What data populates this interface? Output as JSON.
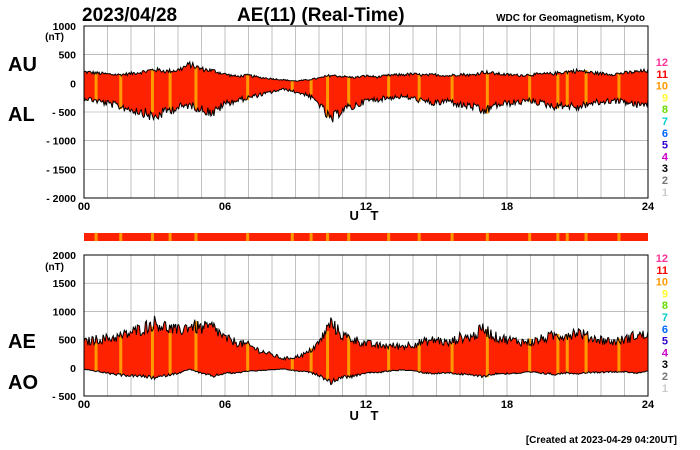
{
  "header": {
    "date": "2023/04/28",
    "title": "AE(11) (Real-Time)",
    "source": "WDC for Geomagnetism, Kyoto"
  },
  "footer": {
    "created": "[Created at 2023-04-29 04:20UT]"
  },
  "legend": {
    "labels": [
      "12",
      "11",
      "10",
      "9",
      "8",
      "7",
      "6",
      "5",
      "4",
      "3",
      "2",
      "1"
    ],
    "colors": [
      "#ff3399",
      "#ff0000",
      "#ff9900",
      "#ffff33",
      "#66dd00",
      "#00cccc",
      "#0066ff",
      "#3300cc",
      "#cc00cc",
      "#000000",
      "#777777",
      "#cccccc"
    ]
  },
  "colors": {
    "fill_main": "#ff2200",
    "fill_alt": "#ff9900",
    "line": "#000000",
    "grid": "#999999"
  },
  "chart_data": [
    {
      "type": "area",
      "panel": "AU/AL",
      "side_labels": [
        "AU",
        "AL"
      ],
      "unit": "(nT)",
      "xlabel": "U T",
      "xlim": [
        0,
        24
      ],
      "xticks": [
        0,
        6,
        12,
        18,
        24
      ],
      "xtick_labels": [
        "00",
        "06",
        "12",
        "18",
        "24"
      ],
      "ylim": [
        -2000,
        1000
      ],
      "yticks": [
        1000,
        500,
        0,
        -500,
        -1000,
        -1500,
        -2000
      ],
      "ytick_labels": [
        "1000",
        "500",
        "0",
        "- 500",
        "- 1000",
        "- 1500",
        "- 2000"
      ],
      "x": [
        0,
        0.5,
        1,
        1.5,
        2,
        2.5,
        3,
        3.5,
        4,
        4.5,
        5,
        5.5,
        6,
        6.5,
        7,
        7.5,
        8,
        8.5,
        9,
        9.5,
        10,
        10.5,
        11,
        11.5,
        12,
        12.5,
        13,
        13.5,
        14,
        14.5,
        15,
        15.5,
        16,
        16.5,
        17,
        17.5,
        18,
        18.5,
        19,
        19.5,
        20,
        20.5,
        21,
        21.5,
        22,
        22.5,
        23,
        23.5,
        24
      ],
      "series": [
        {
          "name": "AU",
          "values": [
            200,
            180,
            160,
            150,
            170,
            200,
            240,
            210,
            230,
            330,
            250,
            220,
            160,
            120,
            140,
            100,
            80,
            60,
            40,
            60,
            90,
            140,
            120,
            100,
            130,
            110,
            140,
            150,
            160,
            140,
            150,
            130,
            160,
            140,
            200,
            170,
            150,
            140,
            150,
            160,
            170,
            200,
            220,
            190,
            170,
            160,
            180,
            200,
            220
          ]
        },
        {
          "name": "AL",
          "values": [
            -250,
            -300,
            -350,
            -400,
            -450,
            -500,
            -600,
            -480,
            -420,
            -380,
            -450,
            -520,
            -350,
            -300,
            -250,
            -200,
            -150,
            -100,
            -150,
            -200,
            -350,
            -650,
            -450,
            -400,
            -300,
            -280,
            -250,
            -230,
            -260,
            -320,
            -350,
            -300,
            -380,
            -400,
            -500,
            -380,
            -350,
            -330,
            -300,
            -350,
            -400,
            -380,
            -420,
            -350,
            -330,
            -300,
            -320,
            -380,
            -350
          ]
        }
      ]
    },
    {
      "type": "area",
      "panel": "AE/AO",
      "side_labels": [
        "AE",
        "AO"
      ],
      "unit": "(nT)",
      "xlabel": "U T",
      "xlim": [
        0,
        24
      ],
      "xticks": [
        0,
        6,
        12,
        18,
        24
      ],
      "xtick_labels": [
        "00",
        "06",
        "12",
        "18",
        "24"
      ],
      "ylim": [
        -500,
        2000
      ],
      "yticks": [
        2000,
        1500,
        1000,
        500,
        0,
        -500
      ],
      "ytick_labels": [
        "2000",
        "1500",
        "1000",
        "500",
        "0",
        "- 500"
      ],
      "x": [
        0,
        0.5,
        1,
        1.5,
        2,
        2.5,
        3,
        3.5,
        4,
        4.5,
        5,
        5.5,
        6,
        6.5,
        7,
        7.5,
        8,
        8.5,
        9,
        9.5,
        10,
        10.5,
        11,
        11.5,
        12,
        12.5,
        13,
        13.5,
        14,
        14.5,
        15,
        15.5,
        16,
        16.5,
        17,
        17.5,
        18,
        18.5,
        19,
        19.5,
        20,
        20.5,
        21,
        21.5,
        22,
        22.5,
        23,
        23.5,
        24
      ],
      "series": [
        {
          "name": "AE",
          "values": [
            450,
            500,
            520,
            550,
            620,
            700,
            800,
            720,
            650,
            750,
            700,
            720,
            520,
            450,
            400,
            300,
            230,
            160,
            190,
            260,
            440,
            800,
            570,
            500,
            430,
            390,
            390,
            380,
            420,
            460,
            500,
            430,
            540,
            540,
            700,
            550,
            500,
            470,
            450,
            510,
            570,
            580,
            640,
            540,
            500,
            460,
            500,
            580,
            570
          ]
        },
        {
          "name": "AO",
          "values": [
            -25,
            -60,
            -95,
            -125,
            -140,
            -150,
            -180,
            -135,
            -95,
            -25,
            -100,
            -150,
            -95,
            -90,
            -55,
            -50,
            -35,
            -20,
            -55,
            -70,
            -130,
            -255,
            -165,
            -150,
            -85,
            -85,
            -55,
            -40,
            -50,
            -90,
            -100,
            -85,
            -110,
            -130,
            -150,
            -105,
            -100,
            -95,
            -75,
            -95,
            -115,
            -90,
            -100,
            -80,
            -80,
            -70,
            -70,
            -90,
            -65
          ]
        }
      ]
    }
  ]
}
